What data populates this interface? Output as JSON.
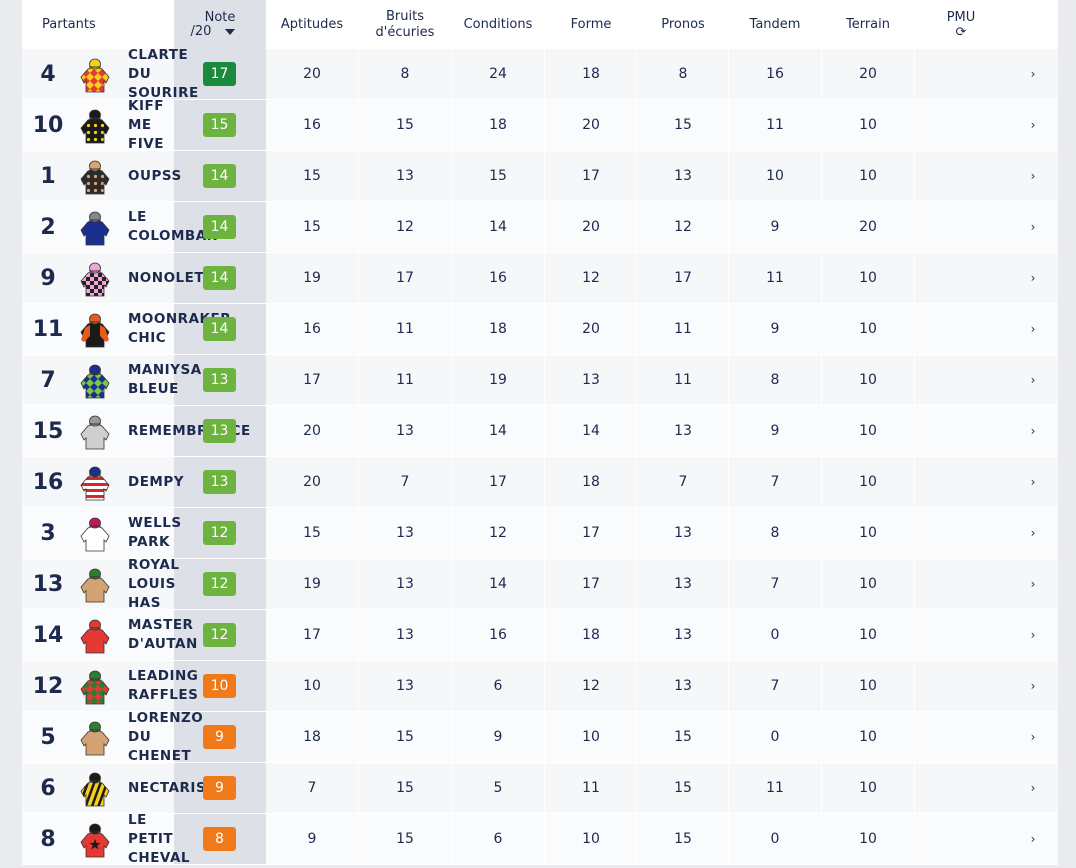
{
  "header": {
    "partants": "Partants",
    "note_line1": "Note",
    "note_line2": "/20",
    "aptitudes": "Aptitudes",
    "bruits_line1": "Bruits",
    "bruits_line2": "d'écuries",
    "conditions": "Conditions",
    "forme": "Forme",
    "pronos": "Pronos",
    "tandem": "Tandem",
    "terrain": "Terrain",
    "pmu": "PMU",
    "refresh_glyph": "⟳"
  },
  "colors": {
    "dark_green": "#1a8a3d",
    "green": "#6db33f",
    "orange": "#f07a1a"
  },
  "rows": [
    {
      "num": "4",
      "name": [
        "CLARTE",
        "DU",
        "SOURIRE"
      ],
      "note": "17",
      "tier": "dark_green",
      "apt": "20",
      "bruits": "8",
      "cond": "24",
      "forme": "18",
      "pronos": "8",
      "tandem": "16",
      "terrain": "20",
      "silk": {
        "body": "#e53935",
        "pattern": "diamonds",
        "accent": "#f7d117",
        "cap": "#f7d117"
      }
    },
    {
      "num": "10",
      "name": [
        "KIFF",
        "ME",
        "FIVE"
      ],
      "note": "15",
      "tier": "green",
      "apt": "16",
      "bruits": "15",
      "cond": "18",
      "forme": "20",
      "pronos": "15",
      "tandem": "11",
      "terrain": "10",
      "silk": {
        "body": "#1a1a1a",
        "pattern": "dots",
        "accent": "#f7d117",
        "cap": "#1a1a1a"
      }
    },
    {
      "num": "1",
      "name": [
        "OUPSS"
      ],
      "note": "14",
      "tier": "green",
      "apt": "15",
      "bruits": "13",
      "cond": "15",
      "forme": "17",
      "pronos": "13",
      "tandem": "10",
      "terrain": "10",
      "silk": {
        "body": "#2b2b2b",
        "pattern": "dots",
        "accent": "#d9a56b",
        "cap": "#d9a56b"
      }
    },
    {
      "num": "2",
      "name": [
        "LE",
        "COLOMBAR"
      ],
      "note": "14",
      "tier": "green",
      "apt": "15",
      "bruits": "12",
      "cond": "14",
      "forme": "20",
      "pronos": "12",
      "tandem": "9",
      "terrain": "20",
      "silk": {
        "body": "#1a2f8f",
        "pattern": "plain",
        "accent": "#1a2f8f",
        "cap": "#888888"
      }
    },
    {
      "num": "9",
      "name": [
        "NONOLETA"
      ],
      "note": "14",
      "tier": "green",
      "apt": "19",
      "bruits": "17",
      "cond": "16",
      "forme": "12",
      "pronos": "17",
      "tandem": "11",
      "terrain": "10",
      "silk": {
        "body": "#f2a7d8",
        "pattern": "checks",
        "accent": "#222222",
        "cap": "#f2a7d8"
      }
    },
    {
      "num": "11",
      "name": [
        "MOONRAKER",
        "CHIC"
      ],
      "note": "14",
      "tier": "green",
      "apt": "16",
      "bruits": "11",
      "cond": "18",
      "forme": "20",
      "pronos": "11",
      "tandem": "9",
      "terrain": "10",
      "silk": {
        "body": "#1a1a1a",
        "pattern": "sleeves",
        "accent": "#e85a1a",
        "cap": "#e85a1a"
      }
    },
    {
      "num": "7",
      "name": [
        "MANIYSA",
        "BLEUE"
      ],
      "note": "13",
      "tier": "green",
      "apt": "17",
      "bruits": "11",
      "cond": "19",
      "forme": "13",
      "pronos": "11",
      "tandem": "8",
      "terrain": "10",
      "silk": {
        "body": "#1a2f8f",
        "pattern": "diamonds",
        "accent": "#7ac943",
        "cap": "#1a2f8f"
      }
    },
    {
      "num": "15",
      "name": [
        "REMEMBRANCE"
      ],
      "note": "13",
      "tier": "green",
      "apt": "20",
      "bruits": "13",
      "cond": "14",
      "forme": "14",
      "pronos": "13",
      "tandem": "9",
      "terrain": "10",
      "silk": {
        "body": "#cfcfcf",
        "pattern": "plain",
        "accent": "#cfcfcf",
        "cap": "#9a9a9a"
      }
    },
    {
      "num": "16",
      "name": [
        "DEMPY"
      ],
      "note": "13",
      "tier": "green",
      "apt": "20",
      "bruits": "7",
      "cond": "17",
      "forme": "18",
      "pronos": "7",
      "tandem": "7",
      "terrain": "10",
      "silk": {
        "body": "#ffffff",
        "pattern": "hoops",
        "accent": "#d62828",
        "cap": "#1a2f8f"
      }
    },
    {
      "num": "3",
      "name": [
        "WELLS",
        "PARK"
      ],
      "note": "12",
      "tier": "green",
      "apt": "15",
      "bruits": "13",
      "cond": "12",
      "forme": "17",
      "pronos": "13",
      "tandem": "8",
      "terrain": "10",
      "silk": {
        "body": "#ffffff",
        "pattern": "plain",
        "accent": "#ffffff",
        "cap": "#c2185b"
      }
    },
    {
      "num": "13",
      "name": [
        "ROYAL",
        "LOUIS",
        "HAS"
      ],
      "note": "12",
      "tier": "green",
      "apt": "19",
      "bruits": "13",
      "cond": "14",
      "forme": "17",
      "pronos": "13",
      "tandem": "7",
      "terrain": "10",
      "silk": {
        "body": "#d4a373",
        "pattern": "plain",
        "accent": "#d4a373",
        "cap": "#2e7d32"
      }
    },
    {
      "num": "14",
      "name": [
        "MASTER",
        "D'AUTAN"
      ],
      "note": "12",
      "tier": "green",
      "apt": "17",
      "bruits": "13",
      "cond": "16",
      "forme": "18",
      "pronos": "13",
      "tandem": "0",
      "terrain": "10",
      "silk": {
        "body": "#e53935",
        "pattern": "plain",
        "accent": "#e53935",
        "cap": "#e53935"
      }
    },
    {
      "num": "12",
      "name": [
        "LEADING",
        "RAFFLES"
      ],
      "note": "10",
      "tier": "orange",
      "apt": "10",
      "bruits": "13",
      "cond": "6",
      "forme": "12",
      "pronos": "13",
      "tandem": "7",
      "terrain": "10",
      "silk": {
        "body": "#2e7d32",
        "pattern": "diamonds",
        "accent": "#e53935",
        "cap": "#2e7d32"
      }
    },
    {
      "num": "5",
      "name": [
        "LORENZO",
        "DU",
        "CHENET"
      ],
      "note": "9",
      "tier": "orange",
      "apt": "18",
      "bruits": "15",
      "cond": "9",
      "forme": "10",
      "pronos": "15",
      "tandem": "0",
      "terrain": "10",
      "silk": {
        "body": "#d4a373",
        "pattern": "plain",
        "accent": "#d4a373",
        "cap": "#2e7d32"
      }
    },
    {
      "num": "6",
      "name": [
        "NECTARIS"
      ],
      "note": "9",
      "tier": "orange",
      "apt": "7",
      "bruits": "15",
      "cond": "5",
      "forme": "11",
      "pronos": "15",
      "tandem": "11",
      "terrain": "10",
      "silk": {
        "body": "#f7d117",
        "pattern": "stripes",
        "accent": "#1a1a1a",
        "cap": "#1a1a1a"
      }
    },
    {
      "num": "8",
      "name": [
        "LE",
        "PETIT",
        "CHEVAL"
      ],
      "note": "8",
      "tier": "orange",
      "apt": "9",
      "bruits": "15",
      "cond": "6",
      "forme": "10",
      "pronos": "15",
      "tandem": "0",
      "terrain": "10",
      "silk": {
        "body": "#e53935",
        "pattern": "star",
        "accent": "#1a1a1a",
        "cap": "#1a1a1a"
      }
    }
  ]
}
